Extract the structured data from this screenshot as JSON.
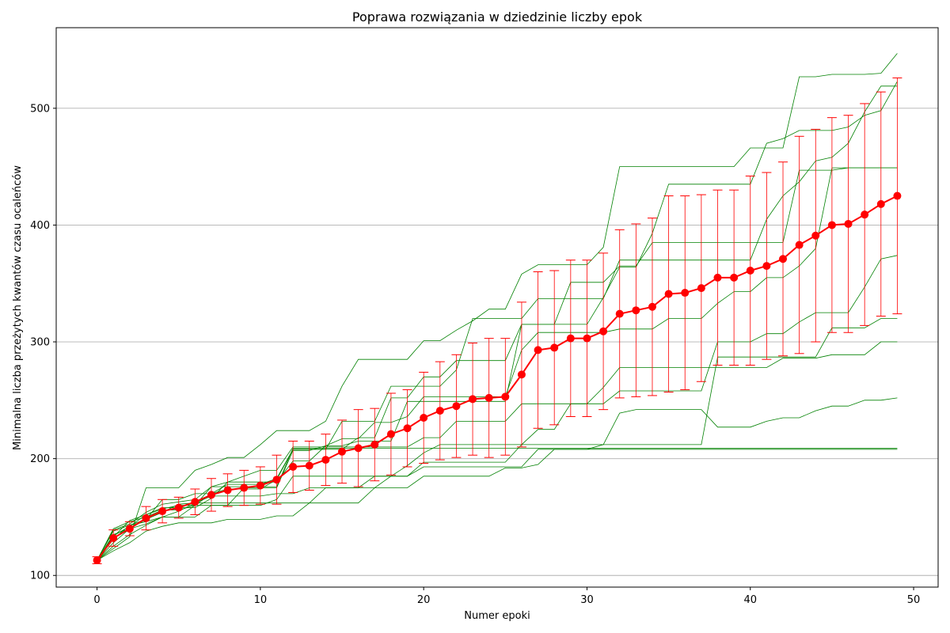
{
  "chart_data": {
    "type": "line",
    "title": "Poprawa rozwiązania w dziedzinie liczby epok",
    "xlabel": "Numer epoki",
    "ylabel": "Minimalna liczba przeżytych kwantów czasu ocaleńców",
    "xlim": [
      -2.5,
      51.5
    ],
    "ylim": [
      90,
      569
    ],
    "x_ticks": [
      0,
      10,
      20,
      30,
      40,
      50
    ],
    "y_ticks": [
      100,
      200,
      300,
      400,
      500
    ],
    "grid": "horizontal",
    "colors": {
      "mean": "#ff0000",
      "runs": "#008000",
      "grid": "#b0b0b0",
      "errorbar": "#ff0000"
    },
    "x": [
      0,
      1,
      2,
      3,
      4,
      5,
      6,
      7,
      8,
      9,
      10,
      11,
      12,
      13,
      14,
      15,
      16,
      17,
      18,
      19,
      20,
      21,
      22,
      23,
      24,
      25,
      26,
      27,
      28,
      29,
      30,
      31,
      32,
      33,
      34,
      35,
      36,
      37,
      38,
      39,
      40,
      41,
      42,
      43,
      44,
      45,
      46,
      47,
      48,
      49
    ],
    "mean": {
      "values": [
        113,
        132,
        140,
        149,
        155,
        158,
        163,
        169,
        173,
        175,
        177,
        182,
        193,
        194,
        199,
        206,
        209,
        212,
        221,
        226,
        235,
        241,
        245,
        251,
        252,
        253,
        272,
        293,
        295,
        303,
        303,
        309,
        324,
        327,
        330,
        341,
        342,
        346,
        355,
        355,
        361,
        365,
        371,
        383,
        391,
        400,
        401,
        409,
        418,
        425
      ],
      "std": [
        3,
        7,
        6,
        10,
        10,
        9,
        11,
        14,
        14,
        15,
        16,
        21,
        22,
        21,
        22,
        27,
        33,
        31,
        35,
        33,
        39,
        42,
        44,
        48,
        51,
        50,
        62,
        67,
        66,
        67,
        67,
        67,
        72,
        74,
        76,
        84,
        83,
        80,
        75,
        75,
        81,
        80,
        83,
        93,
        91,
        92,
        93,
        95,
        96,
        101
      ]
    },
    "runs": [
      [
        113,
        121,
        128,
        138,
        142,
        145,
        145,
        145,
        148,
        148,
        148,
        151,
        151,
        162,
        162,
        162,
        162,
        175,
        175,
        175,
        185,
        185,
        185,
        185,
        185,
        192,
        192,
        195,
        208,
        208,
        208,
        212,
        239,
        242,
        242,
        242,
        242,
        242,
        227,
        227,
        227,
        232,
        235,
        235,
        241,
        245,
        245,
        250,
        250,
        252
      ],
      [
        113,
        123,
        133,
        175,
        175,
        175,
        190,
        195,
        201,
        201,
        212,
        224,
        224,
        224,
        232,
        262,
        285,
        285,
        285,
        285,
        301,
        301,
        310,
        318,
        328,
        328,
        358,
        366,
        366,
        366,
        366,
        381,
        450,
        450,
        450,
        450,
        450,
        450,
        450,
        450,
        466,
        466,
        466,
        527,
        527,
        529,
        529,
        529,
        530,
        547
      ],
      [
        113,
        138,
        143,
        148,
        165,
        165,
        170,
        170,
        178,
        178,
        178,
        183,
        208,
        208,
        208,
        232,
        232,
        232,
        262,
        262,
        262,
        262,
        276,
        320,
        320,
        320,
        320,
        337,
        337,
        337,
        337,
        337,
        370,
        370,
        370,
        370,
        370,
        370,
        370,
        370,
        370,
        405,
        425,
        437,
        455,
        458,
        470,
        497,
        519,
        519
      ],
      [
        113,
        125,
        135,
        143,
        150,
        150,
        150,
        160,
        160,
        175,
        175,
        175,
        207,
        207,
        211,
        211,
        215,
        215,
        215,
        249,
        249,
        249,
        249,
        249,
        249,
        249,
        315,
        315,
        315,
        351,
        351,
        351,
        365,
        365,
        385,
        385,
        385,
        385,
        385,
        385,
        385,
        385,
        385,
        447,
        447,
        447,
        449,
        449,
        449,
        449
      ],
      [
        113,
        133,
        147,
        152,
        157,
        160,
        160,
        170,
        174,
        174,
        174,
        182,
        208,
        208,
        208,
        208,
        218,
        218,
        252,
        252,
        270,
        270,
        284,
        284,
        284,
        284,
        315,
        315,
        315,
        315,
        315,
        338,
        364,
        364,
        393,
        435,
        435,
        435,
        435,
        435,
        435,
        470,
        474,
        481,
        481,
        481,
        484,
        494,
        498,
        523
      ],
      [
        113,
        135,
        140,
        144,
        150,
        150,
        160,
        176,
        180,
        185,
        190,
        190,
        210,
        210,
        210,
        210,
        210,
        210,
        210,
        210,
        218,
        218,
        232,
        232,
        232,
        232,
        247,
        247,
        247,
        247,
        247,
        247,
        258,
        258,
        258,
        258,
        258,
        258,
        300,
        300,
        300,
        307,
        307,
        317,
        325,
        325,
        325,
        347,
        371,
        374
      ],
      [
        113,
        128,
        140,
        148,
        154,
        161,
        162,
        162,
        162,
        162,
        162,
        162,
        162,
        162,
        175,
        175,
        175,
        185,
        185,
        185,
        197,
        197,
        197,
        197,
        197,
        197,
        212,
        225,
        225,
        247,
        247,
        261,
        278,
        278,
        278,
        278,
        278,
        278,
        278,
        278,
        278,
        278,
        286,
        286,
        286,
        289,
        289,
        289,
        300,
        300
      ],
      [
        113,
        131,
        143,
        146,
        150,
        155,
        162,
        168,
        168,
        168,
        168,
        170,
        170,
        175,
        175,
        175,
        175,
        175,
        185,
        194,
        205,
        212,
        212,
        212,
        212,
        212,
        212,
        212,
        212,
        212,
        212,
        212,
        212,
        212,
        212,
        212,
        212,
        212,
        287,
        287,
        287,
        287,
        287,
        287,
        287,
        312,
        312,
        312,
        320,
        320
      ],
      [
        113,
        140,
        146,
        150,
        156,
        156,
        160,
        160,
        160,
        160,
        160,
        165,
        185,
        185,
        185,
        185,
        185,
        185,
        185,
        185,
        193,
        193,
        193,
        193,
        193,
        193,
        193,
        208,
        208,
        208,
        208,
        208,
        208,
        208,
        208,
        208,
        208,
        208,
        208,
        208,
        208,
        208,
        208,
        208,
        208,
        208,
        208,
        208,
        208,
        208
      ],
      [
        113,
        134,
        142,
        152,
        158,
        158,
        158,
        166,
        180,
        180,
        180,
        180,
        198,
        198,
        211,
        217,
        217,
        231,
        231,
        236,
        253,
        253,
        253,
        253,
        253,
        253,
        293,
        308,
        308,
        308,
        308,
        308,
        311,
        311,
        311,
        320,
        320,
        320,
        333,
        343,
        343,
        355,
        355,
        365,
        380,
        449,
        449,
        449,
        449,
        449
      ],
      [
        113,
        139,
        144,
        154,
        161,
        163,
        165,
        176,
        176,
        176,
        176,
        176,
        209,
        209,
        209,
        209,
        209,
        209,
        209,
        209,
        209,
        209,
        209,
        209,
        209,
        209,
        209,
        209,
        209,
        209,
        209,
        209,
        209,
        209,
        209,
        209,
        209,
        209,
        209,
        209,
        209,
        209,
        209,
        209,
        209,
        209,
        209,
        209,
        209,
        209
      ]
    ]
  }
}
